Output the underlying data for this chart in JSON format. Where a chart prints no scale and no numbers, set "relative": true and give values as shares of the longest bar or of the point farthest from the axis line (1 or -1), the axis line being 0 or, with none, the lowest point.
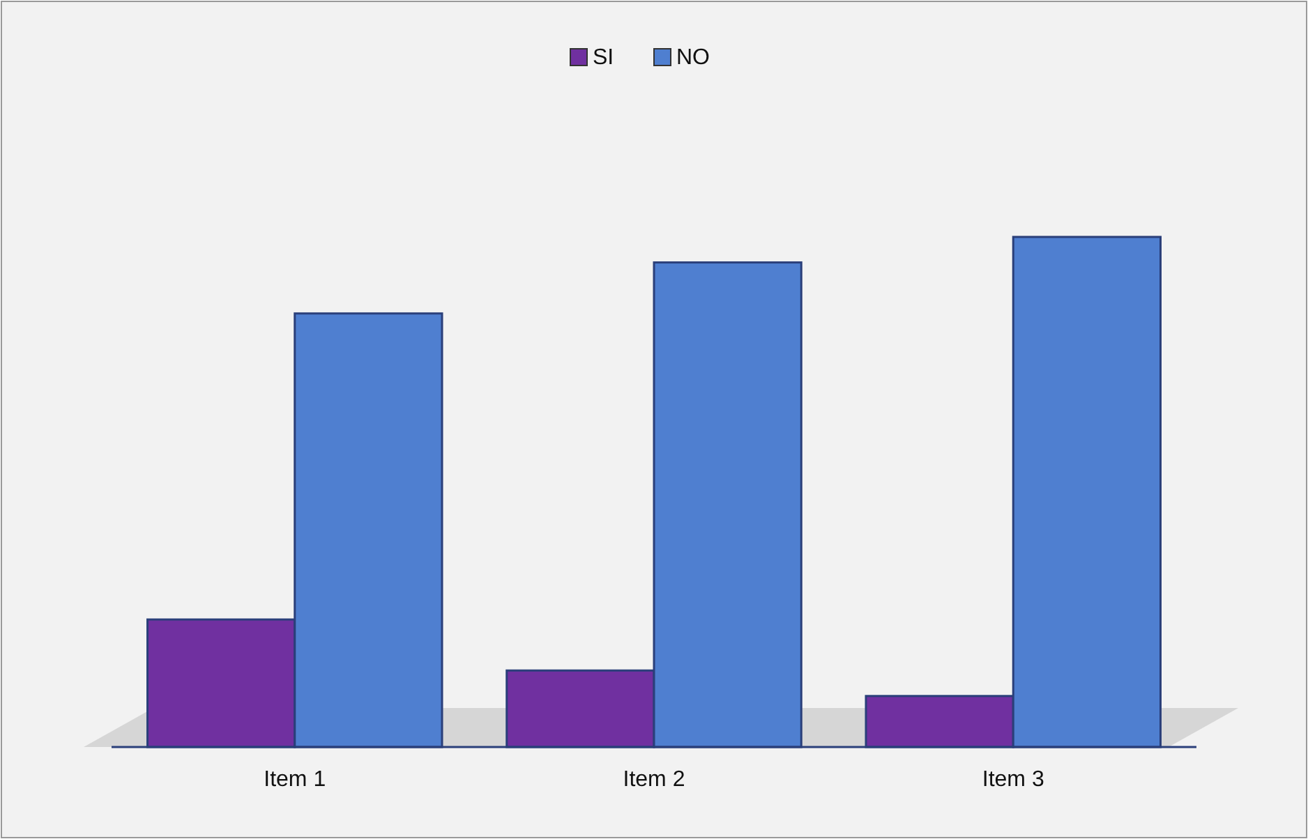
{
  "chart_data": {
    "type": "bar",
    "relative": true,
    "categories": [
      "Item 1",
      "Item 2",
      "Item 3"
    ],
    "series": [
      {
        "name": "SI",
        "color": "#7030a0",
        "values": [
          0.25,
          0.15,
          0.1
        ]
      },
      {
        "name": "NO",
        "color": "#4f7fd0",
        "values": [
          0.85,
          0.95,
          1
        ]
      }
    ],
    "legend": "top",
    "grid": false
  }
}
